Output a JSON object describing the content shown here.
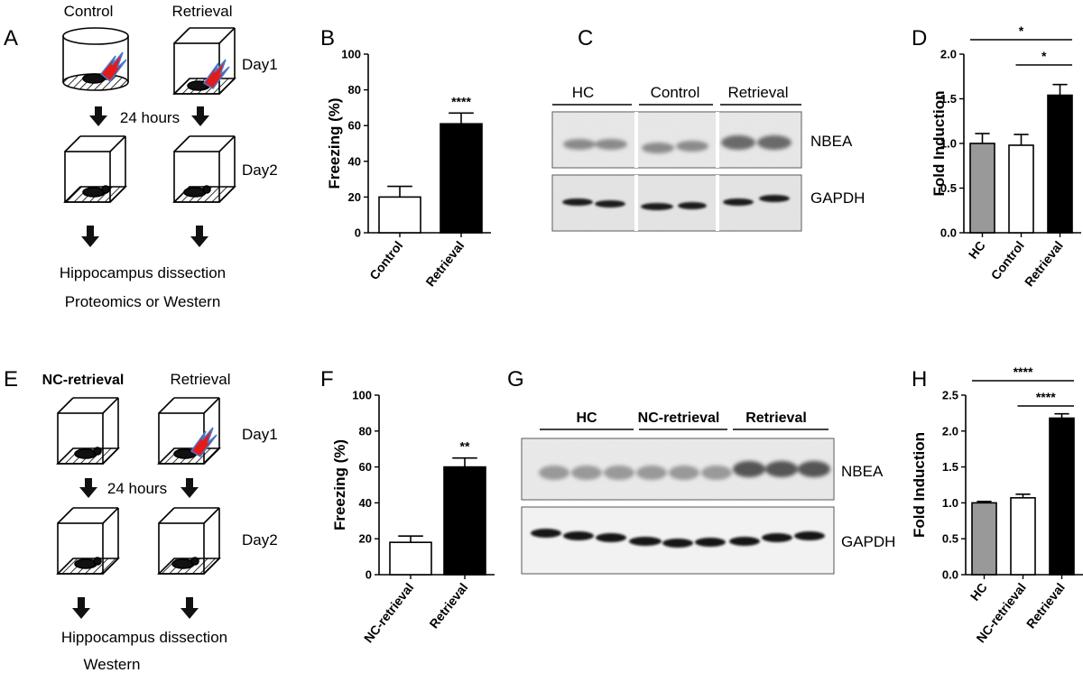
{
  "panels": {
    "A": {
      "letter": "A",
      "groups": [
        "Control",
        "Retrieval"
      ],
      "day1": "Day1",
      "day2": "Day2",
      "interval": "24 hours",
      "step1": "Hippocampus dissection",
      "step2": "Proteomics or Western"
    },
    "C": {
      "letter": "C",
      "lanes": [
        "HC",
        "Control",
        "Retrieval"
      ],
      "band1": "NBEA",
      "band2": "GAPDH"
    },
    "E": {
      "letter": "E",
      "groups": [
        "NC-retrieval",
        "Retrieval"
      ],
      "day1": "Day1",
      "day2": "Day2",
      "interval": "24 hours",
      "step1": "Hippocampus dissection",
      "step2": "Western"
    },
    "G": {
      "letter": "G",
      "lanes": [
        "HC",
        "NC-retrieval",
        "Retrieval"
      ],
      "band1": "NBEA",
      "band2": "GAPDH"
    }
  },
  "chart_data": [
    {
      "id": "B",
      "letter": "B",
      "type": "bar",
      "categories": [
        "Control",
        "Retrieval"
      ],
      "values": [
        20,
        61
      ],
      "errors": [
        6,
        6
      ],
      "colors": [
        "#ffffff",
        "#000000"
      ],
      "ylabel": "Freezing (%)",
      "ylim": [
        0,
        100
      ],
      "yticks": [
        0,
        20,
        40,
        60,
        80,
        100
      ],
      "significance": [
        {
          "bar": 1,
          "label": "****"
        }
      ]
    },
    {
      "id": "D",
      "letter": "D",
      "type": "bar",
      "categories": [
        "HC",
        "Control",
        "Retrieval"
      ],
      "values": [
        1.0,
        0.98,
        1.54
      ],
      "errors": [
        0.11,
        0.12,
        0.12
      ],
      "colors": [
        "#999999",
        "#ffffff",
        "#000000"
      ],
      "ylabel": "Fold Induction",
      "ylim": [
        0,
        2.0
      ],
      "yticks": [
        "0.0",
        "0.5",
        "1.0",
        "1.5",
        "2.0"
      ],
      "brackets": [
        {
          "from": 0,
          "to": 2,
          "label": "*"
        },
        {
          "from": 1,
          "to": 2,
          "label": "*"
        }
      ]
    },
    {
      "id": "F",
      "letter": "F",
      "type": "bar",
      "categories": [
        "NC-retrieval",
        "Retrieval"
      ],
      "values": [
        18,
        60
      ],
      "errors": [
        3.5,
        5
      ],
      "colors": [
        "#ffffff",
        "#000000"
      ],
      "ylabel": "Freezing (%)",
      "ylim": [
        0,
        100
      ],
      "yticks": [
        0,
        20,
        40,
        60,
        80,
        100
      ],
      "significance": [
        {
          "bar": 1,
          "label": "**"
        }
      ]
    },
    {
      "id": "H",
      "letter": "H",
      "type": "bar",
      "categories": [
        "HC",
        "NC-retrieval",
        "Retrieval"
      ],
      "values": [
        1.0,
        1.07,
        2.18
      ],
      "errors": [
        0.02,
        0.05,
        0.06
      ],
      "colors": [
        "#999999",
        "#ffffff",
        "#000000"
      ],
      "ylabel": "Fold Induction",
      "ylim": [
        0,
        2.5
      ],
      "yticks": [
        "0.0",
        "0.5",
        "1.0",
        "1.5",
        "2.0",
        "2.5"
      ],
      "brackets": [
        {
          "from": 0,
          "to": 2,
          "label": "****"
        },
        {
          "from": 1,
          "to": 2,
          "label": "****"
        }
      ]
    }
  ]
}
